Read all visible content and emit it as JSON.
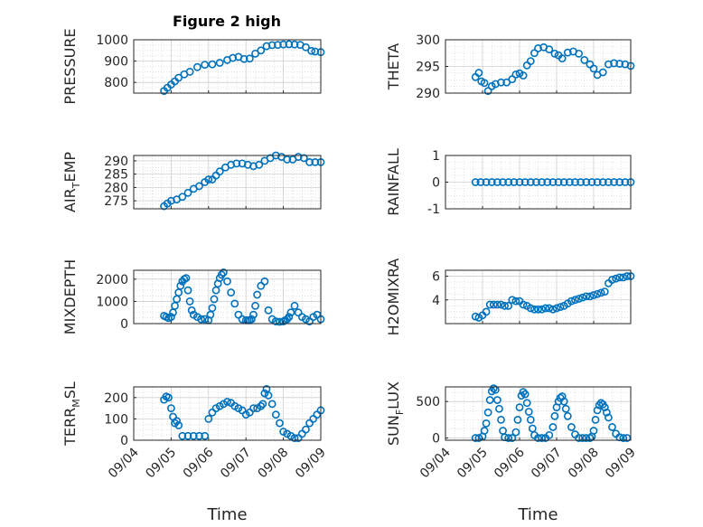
{
  "figure": {
    "title": "Figure 2 high",
    "marker_color": "#0072BD",
    "grid_color": "#cfcfcf"
  },
  "chart_data": [
    {
      "type": "scatter",
      "id": "pressure",
      "ylabel": "PRESSURE",
      "xlabel": "",
      "xlim": [
        0,
        5
      ],
      "ylim": [
        750,
        1000
      ],
      "yticks": [
        800,
        900,
        1000
      ],
      "xticks": [
        0,
        1,
        2,
        3,
        4,
        5
      ],
      "xticklabels": [
        "09/04",
        "09/05",
        "09/06",
        "09/07",
        "09/08",
        "09/09"
      ],
      "show_xticklabels": false,
      "x": [
        0.81,
        0.9,
        1.0,
        1.1,
        1.2,
        1.35,
        1.5,
        1.7,
        1.9,
        2.1,
        2.3,
        2.5,
        2.65,
        2.8,
        2.95,
        3.1,
        3.25,
        3.4,
        3.55,
        3.7,
        3.85,
        4.0,
        4.15,
        4.3,
        4.45,
        4.6,
        4.75,
        4.85,
        5.0
      ],
      "y": [
        760,
        775,
        790,
        805,
        822,
        838,
        850,
        872,
        883,
        885,
        892,
        905,
        915,
        920,
        910,
        912,
        935,
        950,
        970,
        975,
        976,
        978,
        979,
        978,
        976,
        965,
        948,
        945,
        942
      ]
    },
    {
      "type": "scatter",
      "id": "theta",
      "ylabel": "THETA",
      "xlabel": "",
      "xlim": [
        0,
        5
      ],
      "ylim": [
        290,
        300
      ],
      "yticks": [
        290,
        295,
        300
      ],
      "xticks": [
        0,
        1,
        2,
        3,
        4,
        5
      ],
      "xticklabels": [
        "09/04",
        "09/05",
        "09/06",
        "09/07",
        "09/08",
        "09/09"
      ],
      "show_xticklabels": false,
      "x": [
        0.81,
        0.9,
        0.97,
        1.05,
        1.15,
        1.25,
        1.35,
        1.5,
        1.65,
        1.8,
        1.9,
        2.0,
        2.1,
        2.2,
        2.3,
        2.4,
        2.5,
        2.65,
        2.8,
        2.95,
        3.05,
        3.15,
        3.3,
        3.45,
        3.6,
        3.75,
        3.9,
        4.0,
        4.1,
        4.25,
        4.4,
        4.55,
        4.7,
        4.85,
        5.0
      ],
      "y": [
        293.0,
        293.8,
        292.2,
        291.9,
        290.4,
        291.3,
        291.7,
        292.0,
        292.0,
        292.6,
        293.5,
        293.7,
        293.3,
        295.2,
        296.0,
        297.5,
        298.4,
        298.6,
        298.2,
        297.4,
        297.1,
        296.5,
        297.6,
        297.8,
        297.4,
        296.2,
        295.4,
        294.6,
        293.4,
        293.9,
        295.4,
        295.6,
        295.5,
        295.4,
        295.1
      ]
    },
    {
      "type": "scatter",
      "id": "air-temp",
      "ylabel": "AIR_TEMP",
      "xlabel": "",
      "xlim": [
        0,
        5
      ],
      "ylim": [
        272,
        292
      ],
      "yticks": [
        275,
        280,
        285,
        290
      ],
      "xticks": [
        0,
        1,
        2,
        3,
        4,
        5
      ],
      "xticklabels": [
        "09/04",
        "09/05",
        "09/06",
        "09/07",
        "09/08",
        "09/09"
      ],
      "show_xticklabels": false,
      "x": [
        0.81,
        0.9,
        1.0,
        1.15,
        1.3,
        1.45,
        1.6,
        1.75,
        1.9,
        2.0,
        2.1,
        2.2,
        2.3,
        2.45,
        2.6,
        2.75,
        2.9,
        3.05,
        3.2,
        3.35,
        3.5,
        3.65,
        3.8,
        3.95,
        4.1,
        4.25,
        4.4,
        4.55,
        4.7,
        4.85,
        5.0
      ],
      "y": [
        273,
        274,
        275,
        275.5,
        276.5,
        278,
        279.5,
        280.5,
        282,
        283,
        283,
        284.5,
        286,
        287.5,
        288.5,
        289,
        289,
        288.5,
        288,
        288.5,
        290,
        291,
        292,
        291.5,
        290.5,
        290.5,
        291.5,
        291,
        289.5,
        289.5,
        289.5
      ]
    },
    {
      "type": "scatter",
      "id": "rainfall",
      "ylabel": "RAINFALL",
      "xlabel": "",
      "xlim": [
        0,
        5
      ],
      "ylim": [
        -1,
        1
      ],
      "yticks": [
        -1,
        0,
        1
      ],
      "xticks": [
        0,
        1,
        2,
        3,
        4,
        5
      ],
      "xticklabels": [
        "09/04",
        "09/05",
        "09/06",
        "09/07",
        "09/08",
        "09/09"
      ],
      "show_xticklabels": false,
      "x": [
        0.81,
        0.95,
        1.1,
        1.25,
        1.4,
        1.55,
        1.7,
        1.85,
        2.0,
        2.15,
        2.3,
        2.45,
        2.6,
        2.75,
        2.9,
        3.05,
        3.2,
        3.35,
        3.5,
        3.65,
        3.8,
        3.95,
        4.1,
        4.25,
        4.4,
        4.55,
        4.7,
        4.85,
        5.0
      ],
      "y": [
        0,
        0,
        0,
        0,
        0,
        0,
        0,
        0,
        0,
        0,
        0,
        0,
        0,
        0,
        0,
        0,
        0,
        0,
        0,
        0,
        0,
        0,
        0,
        0,
        0,
        0,
        0,
        0,
        0
      ]
    },
    {
      "type": "scatter",
      "id": "mixdepth",
      "ylabel": "MIXDEPTH",
      "xlabel": "",
      "xlim": [
        0,
        5
      ],
      "ylim": [
        0,
        2400
      ],
      "yticks": [
        0,
        1000,
        2000
      ],
      "xticks": [
        0,
        1,
        2,
        3,
        4,
        5
      ],
      "xticklabels": [
        "09/04",
        "09/05",
        "09/06",
        "09/07",
        "09/08",
        "09/09"
      ],
      "show_xticklabels": false,
      "x": [
        0.81,
        0.87,
        0.93,
        1.0,
        1.05,
        1.1,
        1.15,
        1.2,
        1.25,
        1.3,
        1.35,
        1.4,
        1.45,
        1.5,
        1.55,
        1.6,
        1.7,
        1.8,
        1.9,
        2.0,
        2.05,
        2.1,
        2.15,
        2.2,
        2.25,
        2.3,
        2.35,
        2.4,
        2.5,
        2.6,
        2.7,
        2.8,
        2.9,
        3.0,
        3.05,
        3.1,
        3.15,
        3.2,
        3.25,
        3.3,
        3.4,
        3.5,
        3.6,
        3.7,
        3.8,
        3.9,
        4.0,
        4.05,
        4.1,
        4.15,
        4.2,
        4.3,
        4.4,
        4.5,
        4.6,
        4.7,
        4.8,
        4.9,
        5.0
      ],
      "y": [
        350,
        300,
        250,
        300,
        500,
        800,
        1100,
        1400,
        1700,
        1900,
        2000,
        2050,
        1500,
        1000,
        600,
        400,
        300,
        200,
        200,
        150,
        400,
        700,
        1100,
        1500,
        1800,
        2050,
        2200,
        2300,
        1900,
        1400,
        900,
        400,
        200,
        150,
        150,
        150,
        200,
        400,
        800,
        1300,
        1700,
        1900,
        600,
        200,
        100,
        80,
        100,
        150,
        200,
        300,
        500,
        800,
        500,
        300,
        200,
        100,
        300,
        400,
        200
      ]
    },
    {
      "type": "scatter",
      "id": "h2omixra",
      "ylabel": "H2OMIXRA",
      "xlabel": "",
      "xlim": [
        0,
        5
      ],
      "ylim": [
        2,
        6.5
      ],
      "yticks": [
        4,
        6
      ],
      "xticks": [
        0,
        1,
        2,
        3,
        4,
        5
      ],
      "xticklabels": [
        "09/04",
        "09/05",
        "09/06",
        "09/07",
        "09/08",
        "09/09"
      ],
      "show_xticklabels": false,
      "x": [
        0.81,
        0.9,
        1.0,
        1.1,
        1.2,
        1.3,
        1.4,
        1.5,
        1.6,
        1.7,
        1.8,
        1.9,
        2.0,
        2.1,
        2.2,
        2.3,
        2.4,
        2.5,
        2.6,
        2.7,
        2.8,
        2.9,
        3.0,
        3.1,
        3.2,
        3.3,
        3.4,
        3.5,
        3.6,
        3.7,
        3.8,
        3.9,
        4.0,
        4.1,
        4.2,
        4.3,
        4.4,
        4.5,
        4.6,
        4.7,
        4.8,
        4.9,
        5.0
      ],
      "y": [
        2.6,
        2.5,
        2.7,
        3.0,
        3.6,
        3.6,
        3.6,
        3.6,
        3.5,
        3.5,
        4.0,
        3.9,
        3.9,
        3.6,
        3.5,
        3.3,
        3.2,
        3.2,
        3.2,
        3.3,
        3.3,
        3.2,
        3.3,
        3.4,
        3.5,
        3.7,
        3.9,
        4.0,
        4.1,
        4.2,
        4.3,
        4.3,
        4.4,
        4.5,
        4.6,
        4.7,
        5.4,
        5.7,
        5.8,
        5.9,
        5.9,
        6.0,
        6.0
      ]
    },
    {
      "type": "scatter",
      "id": "terr-msl",
      "ylabel": "TERR_MSL",
      "xlabel": "Time",
      "xlim": [
        0,
        5
      ],
      "ylim": [
        0,
        250
      ],
      "yticks": [
        0,
        100,
        200
      ],
      "xticks": [
        0,
        1,
        2,
        3,
        4,
        5
      ],
      "xticklabels": [
        "09/04",
        "09/05",
        "09/06",
        "09/07",
        "09/08",
        "09/09"
      ],
      "show_xticklabels": true,
      "x": [
        0.81,
        0.87,
        0.93,
        1.0,
        1.05,
        1.1,
        1.15,
        1.2,
        1.3,
        1.45,
        1.6,
        1.75,
        1.9,
        2.0,
        2.1,
        2.2,
        2.3,
        2.4,
        2.5,
        2.6,
        2.7,
        2.8,
        2.9,
        3.0,
        3.1,
        3.2,
        3.3,
        3.4,
        3.45,
        3.5,
        3.55,
        3.6,
        3.7,
        3.8,
        3.9,
        4.0,
        4.1,
        4.2,
        4.3,
        4.4,
        4.5,
        4.6,
        4.7,
        4.8,
        4.9,
        5.0
      ],
      "y": [
        190,
        205,
        200,
        150,
        110,
        80,
        90,
        70,
        20,
        20,
        20,
        20,
        20,
        100,
        130,
        150,
        160,
        170,
        180,
        175,
        160,
        150,
        140,
        120,
        130,
        150,
        150,
        160,
        170,
        220,
        240,
        210,
        170,
        120,
        80,
        40,
        30,
        20,
        10,
        10,
        30,
        50,
        80,
        100,
        120,
        140
      ]
    },
    {
      "type": "scatter",
      "id": "sun-flux",
      "ylabel": "SUN_FLUX",
      "xlabel": "Time",
      "xlim": [
        0,
        5
      ],
      "ylim": [
        -30,
        700
      ],
      "yticks": [
        0,
        500
      ],
      "xticks": [
        0,
        1,
        2,
        3,
        4,
        5
      ],
      "xticklabels": [
        "09/04",
        "09/05",
        "09/06",
        "09/07",
        "09/08",
        "09/09"
      ],
      "show_xticklabels": true,
      "x": [
        0.81,
        0.9,
        1.0,
        1.05,
        1.1,
        1.15,
        1.2,
        1.25,
        1.3,
        1.35,
        1.4,
        1.45,
        1.5,
        1.55,
        1.6,
        1.7,
        1.8,
        1.9,
        1.95,
        2.0,
        2.05,
        2.1,
        2.15,
        2.2,
        2.25,
        2.3,
        2.35,
        2.4,
        2.5,
        2.6,
        2.7,
        2.8,
        2.9,
        2.95,
        3.0,
        3.05,
        3.1,
        3.15,
        3.2,
        3.25,
        3.3,
        3.4,
        3.5,
        3.6,
        3.7,
        3.8,
        3.9,
        3.95,
        4.0,
        4.05,
        4.1,
        4.15,
        4.2,
        4.25,
        4.3,
        4.35,
        4.4,
        4.5,
        4.6,
        4.7,
        4.8,
        4.9
      ],
      "y": [
        0,
        0,
        20,
        100,
        200,
        350,
        520,
        640,
        680,
        660,
        520,
        400,
        250,
        100,
        10,
        0,
        0,
        80,
        250,
        420,
        580,
        630,
        600,
        480,
        360,
        250,
        130,
        40,
        0,
        0,
        0,
        40,
        150,
        300,
        420,
        500,
        550,
        570,
        500,
        400,
        300,
        150,
        50,
        0,
        0,
        0,
        0,
        20,
        100,
        250,
        380,
        450,
        480,
        460,
        420,
        350,
        280,
        150,
        60,
        10,
        0,
        0
      ]
    }
  ]
}
